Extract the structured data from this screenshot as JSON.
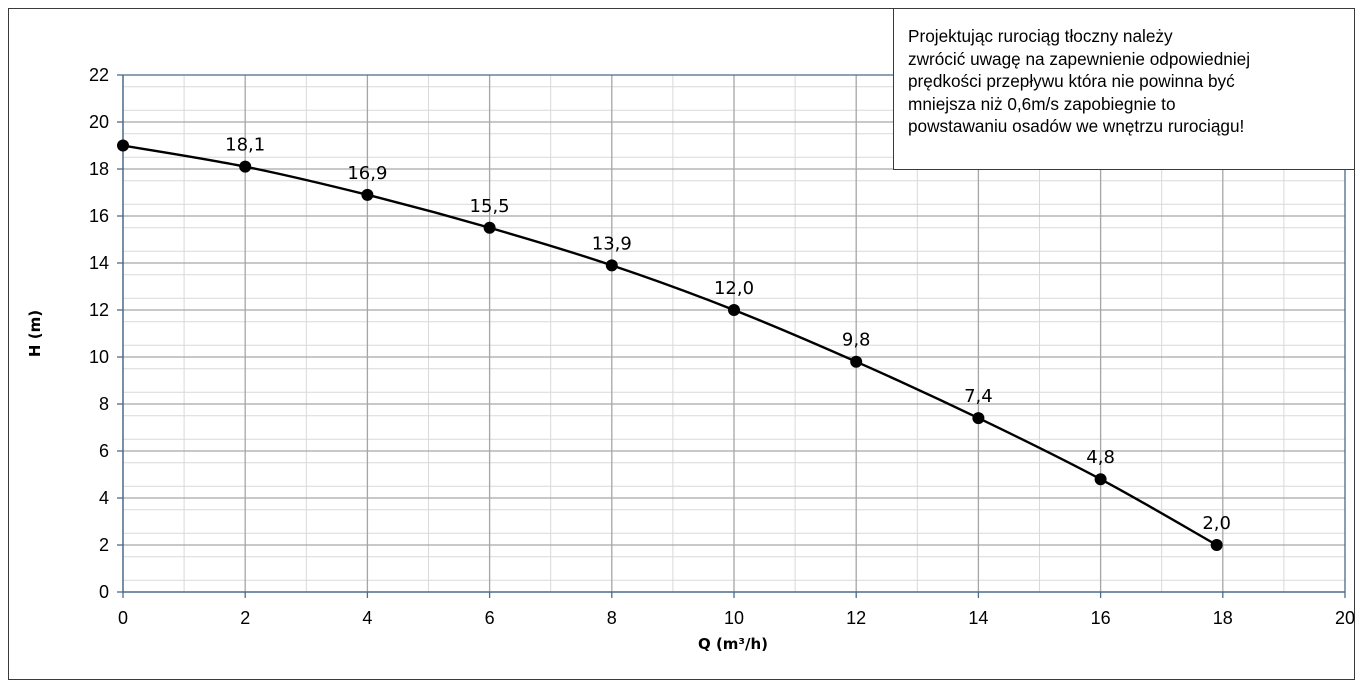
{
  "chart_data": {
    "type": "line",
    "x": [
      0,
      2,
      4,
      6,
      8,
      10,
      12,
      14,
      16,
      17.9
    ],
    "series": [
      {
        "values": [
          19.0,
          18.1,
          16.9,
          15.5,
          13.9,
          12.0,
          9.8,
          7.4,
          4.8,
          2.0
        ]
      }
    ],
    "data_labels": [
      "",
      "18,1",
      "16,9",
      "15,5",
      "13,9",
      "12,0",
      "9,8",
      "7,4",
      "4,8",
      "2,0"
    ],
    "xlabel": "Q (m³/h)",
    "ylabel": "H (m)",
    "xlim": [
      0,
      20
    ],
    "ylim": [
      0,
      22
    ],
    "x_ticks": [
      "0",
      "2",
      "4",
      "6",
      "8",
      "10",
      "12",
      "14",
      "16",
      "18",
      "20"
    ],
    "y_ticks": [
      "0",
      "2",
      "4",
      "6",
      "8",
      "10",
      "12",
      "14",
      "16",
      "18",
      "20",
      "22"
    ],
    "grid": true,
    "minor_grid": true,
    "colors": {
      "major_grid": "#a6a6a6",
      "minor_grid": "#d9d9d9",
      "axis": "#4a6b8a",
      "line": "#000000",
      "marker": "#000000"
    }
  },
  "annotation": {
    "lines": [
      "Projektując rurociąg tłoczny należy",
      "zwrócić uwagę na zapewnienie odpowiedniej",
      "prędkości przepływu która nie powinna być",
      "mniejsza niż 0,6m/s zapobiegnie to",
      "powstawaniu osadów we wnętrzu rurociągu!"
    ]
  }
}
